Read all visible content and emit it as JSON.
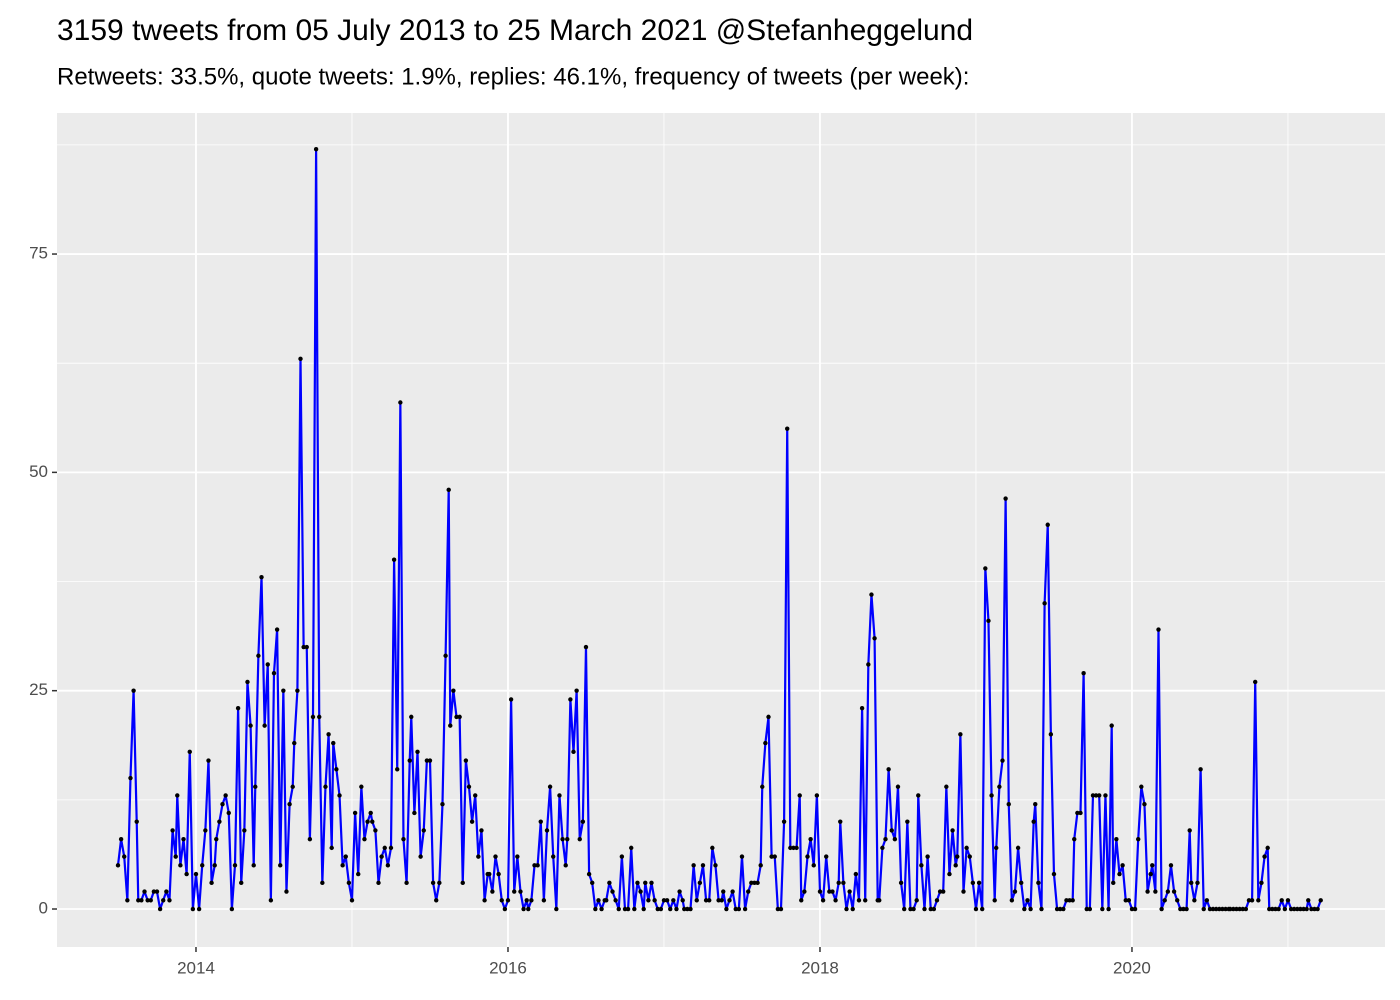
{
  "chart_data": {
    "type": "line",
    "title": "3159 tweets from 05 July 2013 to 25 March 2021 @Stefanheggelund",
    "subtitle": "Retweets: 33.5%, quote tweets: 1.9%, replies: 46.1%, frequency of tweets (per week):",
    "color": "#0000ff",
    "point_color": "#000000",
    "grid": true,
    "xlim": [
      2013.109,
      2021.622
    ],
    "xticks": [
      2014,
      2016,
      2018,
      2020
    ],
    "ylim": [
      -4.35,
      91.15
    ],
    "yticks": [
      0,
      25,
      50,
      75
    ],
    "x": [
      2013.5,
      2013.52,
      2013.54,
      2013.56,
      2013.58,
      2013.6,
      2013.62,
      2013.63,
      2013.65,
      2013.67,
      2013.69,
      2013.71,
      2013.73,
      2013.75,
      2013.77,
      2013.79,
      2013.81,
      2013.83,
      2013.85,
      2013.87,
      2013.88,
      2013.9,
      2013.92,
      2013.94,
      2013.96,
      2013.98,
      2014.0,
      2014.02,
      2014.04,
      2014.06,
      2014.08,
      2014.1,
      2014.12,
      2014.13,
      2014.15,
      2014.17,
      2014.19,
      2014.21,
      2014.23,
      2014.25,
      2014.27,
      2014.29,
      2014.31,
      2014.33,
      2014.35,
      2014.37,
      2014.38,
      2014.4,
      2014.42,
      2014.44,
      2014.46,
      2014.48,
      2014.5,
      2014.52,
      2014.54,
      2014.56,
      2014.58,
      2014.6,
      2014.62,
      2014.63,
      2014.65,
      2014.67,
      2014.69,
      2014.71,
      2014.73,
      2014.75,
      2014.77,
      2014.79,
      2014.81,
      2014.83,
      2014.85,
      2014.87,
      2014.88,
      2014.9,
      2014.92,
      2014.94,
      2014.96,
      2014.98,
      2015.0,
      2015.02,
      2015.04,
      2015.06,
      2015.08,
      2015.1,
      2015.12,
      2015.13,
      2015.15,
      2015.17,
      2015.19,
      2015.21,
      2015.23,
      2015.25,
      2015.27,
      2015.29,
      2015.31,
      2015.33,
      2015.35,
      2015.37,
      2015.38,
      2015.4,
      2015.42,
      2015.44,
      2015.46,
      2015.48,
      2015.5,
      2015.52,
      2015.54,
      2015.56,
      2015.58,
      2015.6,
      2015.62,
      2015.63,
      2015.65,
      2015.67,
      2015.69,
      2015.71,
      2015.73,
      2015.75,
      2015.77,
      2015.79,
      2015.81,
      2015.83,
      2015.85,
      2015.87,
      2015.88,
      2015.9,
      2015.92,
      2015.94,
      2015.96,
      2015.98,
      2016.0,
      2016.02,
      2016.04,
      2016.06,
      2016.08,
      2016.1,
      2016.12,
      2016.13,
      2016.15,
      2016.17,
      2016.19,
      2016.21,
      2016.23,
      2016.25,
      2016.27,
      2016.29,
      2016.31,
      2016.33,
      2016.35,
      2016.37,
      2016.38,
      2016.4,
      2016.42,
      2016.44,
      2016.46,
      2016.48,
      2016.5,
      2016.52,
      2016.54,
      2016.56,
      2016.58,
      2016.6,
      2016.62,
      2016.63,
      2016.65,
      2016.67,
      2016.69,
      2016.71,
      2016.73,
      2016.75,
      2016.77,
      2016.79,
      2016.81,
      2016.83,
      2016.85,
      2016.87,
      2016.88,
      2016.9,
      2016.92,
      2016.94,
      2016.96,
      2016.98,
      2017.0,
      2017.02,
      2017.04,
      2017.06,
      2017.08,
      2017.1,
      2017.12,
      2017.13,
      2017.15,
      2017.17,
      2017.19,
      2017.21,
      2017.23,
      2017.25,
      2017.27,
      2017.29,
      2017.31,
      2017.33,
      2017.35,
      2017.37,
      2017.38,
      2017.4,
      2017.42,
      2017.44,
      2017.46,
      2017.48,
      2017.5,
      2017.52,
      2017.54,
      2017.56,
      2017.58,
      2017.6,
      2017.62,
      2017.63,
      2017.65,
      2017.67,
      2017.69,
      2017.71,
      2017.73,
      2017.75,
      2017.77,
      2017.79,
      2017.81,
      2017.83,
      2017.85,
      2017.87,
      2017.88,
      2017.9,
      2017.92,
      2017.94,
      2017.96,
      2017.98,
      2018.0,
      2018.02,
      2018.04,
      2018.06,
      2018.08,
      2018.1,
      2018.12,
      2018.13,
      2018.15,
      2018.17,
      2018.19,
      2018.21,
      2018.23,
      2018.25,
      2018.27,
      2018.29,
      2018.31,
      2018.33,
      2018.35,
      2018.37,
      2018.38,
      2018.4,
      2018.42,
      2018.44,
      2018.46,
      2018.48,
      2018.5,
      2018.52,
      2018.54,
      2018.56,
      2018.58,
      2018.6,
      2018.62,
      2018.63,
      2018.65,
      2018.67,
      2018.69,
      2018.71,
      2018.73,
      2018.75,
      2018.77,
      2018.79,
      2018.81,
      2018.83,
      2018.85,
      2018.87,
      2018.88,
      2018.9,
      2018.92,
      2018.94,
      2018.96,
      2018.98,
      2019.0,
      2019.02,
      2019.04,
      2019.06,
      2019.08,
      2019.1,
      2019.12,
      2019.13,
      2019.15,
      2019.17,
      2019.19,
      2019.21,
      2019.23,
      2019.25,
      2019.27,
      2019.29,
      2019.31,
      2019.33,
      2019.35,
      2019.37,
      2019.38,
      2019.4,
      2019.42,
      2019.44,
      2019.46,
      2019.48,
      2019.5,
      2019.52,
      2019.54,
      2019.56,
      2019.58,
      2019.6,
      2019.62,
      2019.63,
      2019.65,
      2019.67,
      2019.69,
      2019.71,
      2019.73,
      2019.75,
      2019.77,
      2019.79,
      2019.81,
      2019.83,
      2019.85,
      2019.87,
      2019.88,
      2019.9,
      2019.92,
      2019.94,
      2019.96,
      2019.98,
      2020.0,
      2020.02,
      2020.04,
      2020.06,
      2020.08,
      2020.1,
      2020.12,
      2020.13,
      2020.15,
      2020.17,
      2020.19,
      2020.21,
      2020.23,
      2020.25,
      2020.27,
      2020.29,
      2020.31,
      2020.33,
      2020.35,
      2020.37,
      2020.38,
      2020.4,
      2020.42,
      2020.44,
      2020.46,
      2020.48,
      2020.5,
      2020.52,
      2020.54,
      2020.56,
      2020.58,
      2020.6,
      2020.62,
      2020.63,
      2020.65,
      2020.67,
      2020.69,
      2020.71,
      2020.73,
      2020.75,
      2020.77,
      2020.79,
      2020.81,
      2020.83,
      2020.85,
      2020.87,
      2020.88,
      2020.9,
      2020.92,
      2020.94,
      2020.96,
      2020.98,
      2021.0,
      2021.02,
      2021.04,
      2021.06,
      2021.08,
      2021.1,
      2021.12,
      2021.13,
      2021.15,
      2021.17,
      2021.19,
      2021.21
    ],
    "values": [
      5,
      8,
      6,
      1,
      15,
      25,
      10,
      1,
      1,
      2,
      1,
      1,
      2,
      2,
      0,
      1,
      2,
      1,
      9,
      6,
      13,
      5,
      8,
      4,
      18,
      0,
      4,
      0,
      5,
      9,
      17,
      3,
      5,
      8,
      10,
      12,
      13,
      11,
      0,
      5,
      23,
      3,
      9,
      26,
      21,
      5,
      14,
      29,
      38,
      21,
      28,
      1,
      27,
      32,
      5,
      25,
      2,
      12,
      14,
      19,
      25,
      63,
      30,
      30,
      8,
      22,
      87,
      22,
      3,
      14,
      20,
      7,
      19,
      16,
      13,
      5,
      6,
      3,
      1,
      11,
      4,
      14,
      8,
      10,
      11,
      10,
      9,
      3,
      6,
      7,
      5,
      7,
      40,
      16,
      58,
      8,
      3,
      17,
      22,
      11,
      18,
      6,
      9,
      17,
      17,
      3,
      1,
      3,
      12,
      29,
      48,
      21,
      25,
      22,
      22,
      3,
      17,
      14,
      10,
      13,
      6,
      9,
      1,
      4,
      4,
      2,
      6,
      4,
      1,
      0,
      1,
      24,
      2,
      6,
      2,
      0,
      1,
      0,
      1,
      5,
      5,
      10,
      1,
      9,
      14,
      6,
      0,
      13,
      8,
      5,
      8,
      24,
      18,
      25,
      8,
      10,
      30,
      4,
      3,
      0,
      1,
      0,
      1,
      1,
      3,
      2,
      1,
      0,
      6,
      0,
      0,
      7,
      0,
      3,
      2,
      0,
      3,
      1,
      3,
      1,
      0,
      0,
      1,
      1,
      0,
      1,
      0,
      2,
      1,
      0,
      0,
      0,
      5,
      1,
      3,
      5,
      1,
      1,
      7,
      5,
      1,
      1,
      2,
      0,
      1,
      2,
      0,
      0,
      6,
      0,
      2,
      3,
      3,
      3,
      5,
      14,
      19,
      22,
      6,
      6,
      0,
      0,
      10,
      55,
      7,
      7,
      7,
      13,
      1,
      2,
      6,
      8,
      5,
      13,
      2,
      1,
      6,
      2,
      2,
      1,
      3,
      10,
      3,
      0,
      2,
      0,
      4,
      1,
      23,
      1,
      28,
      36,
      31,
      1,
      1,
      7,
      8,
      16,
      9,
      8,
      14,
      3,
      0,
      10,
      0,
      0,
      1,
      13,
      5,
      0,
      6,
      0,
      0,
      1,
      2,
      2,
      14,
      4,
      9,
      5,
      6,
      20,
      2,
      7,
      6,
      3,
      0,
      3,
      0,
      39,
      33,
      13,
      1,
      7,
      14,
      17,
      47,
      12,
      1,
      2,
      7,
      3,
      0,
      1,
      0,
      10,
      12,
      3,
      0,
      35,
      44,
      20,
      4,
      0,
      0,
      0,
      1,
      1,
      1,
      8,
      11,
      11,
      27,
      0,
      0,
      13,
      13,
      13,
      0,
      13,
      0,
      21,
      3,
      8,
      4,
      5,
      1,
      1,
      0,
      0,
      8,
      14,
      12,
      2,
      4,
      5,
      2,
      32,
      0,
      1,
      2,
      5,
      2,
      1,
      0,
      0,
      0,
      9,
      3,
      1,
      3,
      16,
      0,
      1,
      0,
      0,
      0,
      0,
      0,
      0,
      0,
      0,
      0,
      0,
      0,
      0,
      0,
      1,
      1,
      26,
      1,
      3,
      6,
      7,
      0,
      0,
      0,
      0,
      1,
      0,
      1,
      0,
      0,
      0,
      0,
      0,
      0,
      1,
      0,
      0,
      0,
      1
    ]
  }
}
